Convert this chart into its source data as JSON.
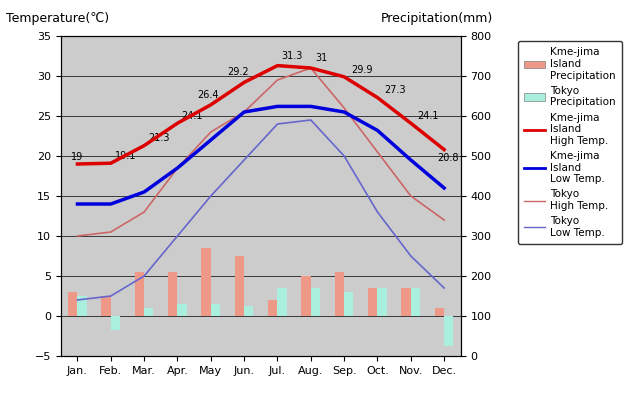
{
  "months": [
    "Jan.",
    "Feb.",
    "Mar.",
    "Apr.",
    "May",
    "Jun.",
    "Jul.",
    "Aug.",
    "Sep.",
    "Oct.",
    "Nov.",
    "Dec."
  ],
  "kume_high_temp": [
    19.0,
    19.1,
    21.3,
    24.1,
    26.4,
    29.2,
    31.3,
    31.0,
    29.9,
    27.3,
    24.1,
    20.8
  ],
  "kume_low_temp": [
    14.0,
    14.0,
    15.5,
    18.5,
    22.0,
    25.5,
    26.2,
    26.2,
    25.5,
    23.2,
    19.5,
    16.0
  ],
  "tokyo_high_temp": [
    10.0,
    10.5,
    13.0,
    18.5,
    23.0,
    25.5,
    29.5,
    31.0,
    26.0,
    20.5,
    15.0,
    12.0
  ],
  "tokyo_low_temp": [
    2.0,
    2.5,
    5.0,
    10.0,
    15.0,
    19.5,
    24.0,
    24.5,
    20.0,
    13.0,
    7.5,
    3.5
  ],
  "kume_precip_bar": [
    3.0,
    2.5,
    5.5,
    5.5,
    8.5,
    7.5,
    2.0,
    5.0,
    5.5,
    3.5,
    3.5,
    1.0
  ],
  "tokyo_precip_bar": [
    2.5,
    -1.8,
    1.0,
    1.5,
    1.5,
    1.3,
    3.5,
    3.5,
    3.0,
    3.5,
    3.5,
    -3.8
  ],
  "kume_high_color": "#dd0000",
  "kume_low_color": "#0000dd",
  "tokyo_high_color": "#cc6666",
  "tokyo_low_color": "#6666cc",
  "kume_precip_color": "#ee9988",
  "tokyo_precip_color": "#aaeedd",
  "bg_color": "#cccccc",
  "temp_ylim": [
    -5,
    35
  ],
  "precip_ylim": [
    0,
    800
  ],
  "title_left": "Temperature(℃)",
  "title_right": "Precipitation(mm)",
  "kume_high_labels": [
    "19",
    "19.1",
    "21.3",
    "24.1",
    "26.4",
    "29.2",
    "31.3",
    "31",
    "29.9",
    "27.3",
    "24.1",
    "20.8"
  ],
  "kume_high_label_dx": [
    -5,
    3,
    3,
    3,
    -10,
    -12,
    3,
    3,
    5,
    5,
    5,
    -5
  ],
  "kume_high_label_dy": [
    3,
    3,
    3,
    3,
    5,
    5,
    5,
    5,
    3,
    3,
    3,
    -8
  ]
}
